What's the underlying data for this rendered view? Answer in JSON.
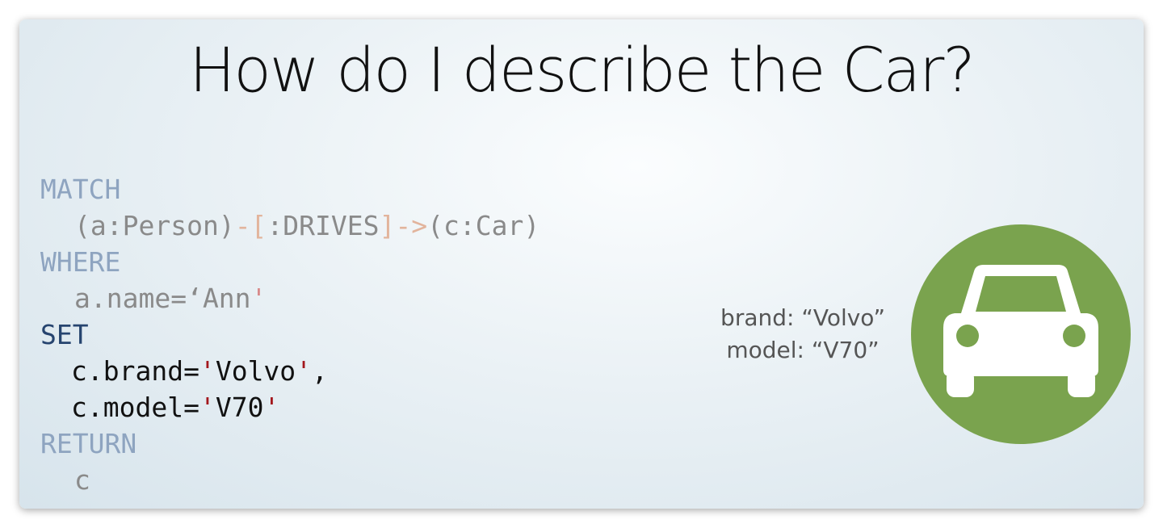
{
  "slide": {
    "title": "How do I describe the Car?",
    "code": {
      "lines": [
        [
          "MATCH"
        ],
        [
          "(a:Person)",
          "-[",
          ":DRIVES",
          "]->",
          "(c:Car)"
        ],
        [
          "WHERE"
        ],
        [
          "a.name=‘Ann",
          "'"
        ],
        [
          "SET"
        ],
        [
          "c.brand=",
          "'",
          "Volvo",
          "'",
          ","
        ],
        [
          "c.model=",
          "'",
          "V70",
          "'"
        ],
        [
          "RETURN"
        ],
        [
          "c"
        ]
      ]
    },
    "node": {
      "properties": [
        "brand: “Volvo”",
        "model: “V70”"
      ]
    }
  }
}
